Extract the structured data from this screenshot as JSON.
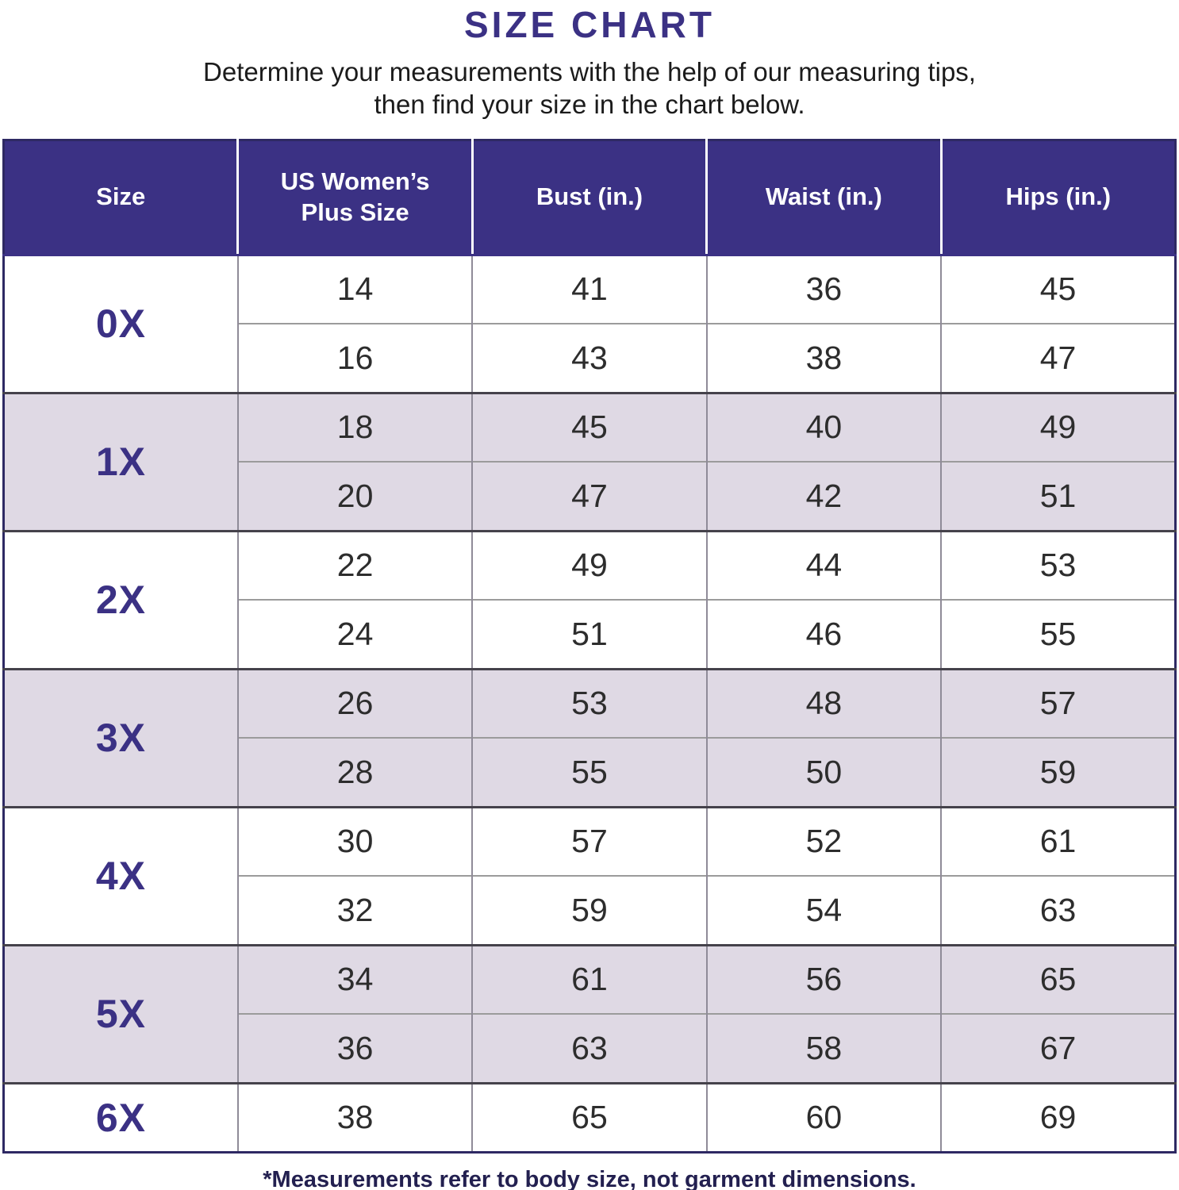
{
  "title": "SIZE CHART",
  "subtitle": {
    "line1": "Determine your measurements with the help of our measuring tips,",
    "line2": "then find your size in the chart below."
  },
  "table": {
    "headers": [
      "Size",
      "US Women’s Plus Size",
      "Bust (in.)",
      "Waist (in.)",
      "Hips (in.)"
    ],
    "groups": [
      {
        "size": "0X",
        "shaded": false,
        "rows": [
          [
            14,
            41,
            36,
            45
          ],
          [
            16,
            43,
            38,
            47
          ]
        ]
      },
      {
        "size": "1X",
        "shaded": true,
        "rows": [
          [
            18,
            45,
            40,
            49
          ],
          [
            20,
            47,
            42,
            51
          ]
        ]
      },
      {
        "size": "2X",
        "shaded": false,
        "rows": [
          [
            22,
            49,
            44,
            53
          ],
          [
            24,
            51,
            46,
            55
          ]
        ]
      },
      {
        "size": "3X",
        "shaded": true,
        "rows": [
          [
            26,
            53,
            48,
            57
          ],
          [
            28,
            55,
            50,
            59
          ]
        ]
      },
      {
        "size": "4X",
        "shaded": false,
        "rows": [
          [
            30,
            57,
            52,
            61
          ],
          [
            32,
            59,
            54,
            63
          ]
        ]
      },
      {
        "size": "5X",
        "shaded": true,
        "rows": [
          [
            34,
            61,
            56,
            65
          ],
          [
            36,
            63,
            58,
            67
          ]
        ]
      },
      {
        "size": "6X",
        "shaded": false,
        "rows": [
          [
            38,
            65,
            60,
            69
          ]
        ]
      }
    ]
  },
  "footnote": "*Measurements refer to body size, not garment dimensions.",
  "colors": {
    "header_bg": "#3B3184",
    "title_color": "#3B3184",
    "subtitle_color": "#1B1B1B",
    "shaded_bg": "#DFD9E4",
    "table_border": "#2E2963",
    "group_divider": "#45424B",
    "row_divider": "#9B9B9B",
    "column_divider": "#8F8B98",
    "number_color": "#2D2D2D",
    "footnote_color": "#232050"
  },
  "chart_data": {
    "type": "table",
    "title": "SIZE CHART",
    "columns": [
      "Size",
      "US Women’s Plus Size",
      "Bust (in.)",
      "Waist (in.)",
      "Hips (in.)"
    ],
    "rows": [
      [
        "0X",
        14,
        41,
        36,
        45
      ],
      [
        "0X",
        16,
        43,
        38,
        47
      ],
      [
        "1X",
        18,
        45,
        40,
        49
      ],
      [
        "1X",
        20,
        47,
        42,
        51
      ],
      [
        "2X",
        22,
        49,
        44,
        53
      ],
      [
        "2X",
        24,
        51,
        46,
        55
      ],
      [
        "3X",
        26,
        53,
        48,
        57
      ],
      [
        "3X",
        28,
        55,
        50,
        59
      ],
      [
        "4X",
        30,
        57,
        52,
        61
      ],
      [
        "4X",
        32,
        59,
        54,
        63
      ],
      [
        "5X",
        34,
        61,
        56,
        65
      ],
      [
        "5X",
        36,
        63,
        58,
        67
      ],
      [
        "6X",
        38,
        65,
        60,
        69
      ]
    ]
  }
}
